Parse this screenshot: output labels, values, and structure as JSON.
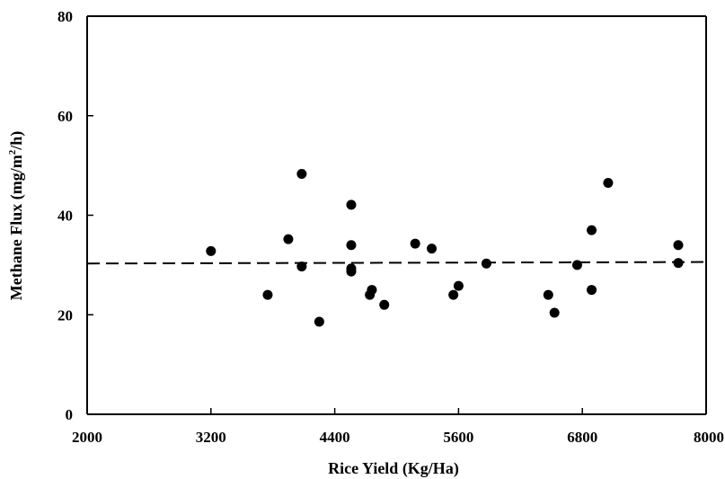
{
  "chart_data": {
    "type": "scatter",
    "title": "",
    "xlabel": "Rice Yield (Kg/Ha)",
    "ylabel_main": "Methane Flux (mg/m",
    "ylabel_sup": "2",
    "ylabel_end": "/h)",
    "xlim": [
      2000,
      8000
    ],
    "ylim": [
      0,
      80
    ],
    "xticks": [
      2000,
      3200,
      4400,
      5600,
      6800,
      8000
    ],
    "yticks": [
      0,
      20,
      40,
      60,
      80
    ],
    "xtick_labels": [
      "2000",
      "3200",
      "4400",
      "5600",
      "6800",
      "8000"
    ],
    "ytick_labels": [
      "0",
      "20",
      "40",
      "60",
      "80"
    ],
    "grid": false,
    "reference_line": {
      "style": "dashed",
      "y_start": 30.3,
      "y_end": 30.6
    },
    "series": [
      {
        "points": [
          {
            "x": 3200,
            "y": 32.8
          },
          {
            "x": 3750,
            "y": 24.0
          },
          {
            "x": 3950,
            "y": 35.2
          },
          {
            "x": 4080,
            "y": 48.3
          },
          {
            "x": 4080,
            "y": 29.7
          },
          {
            "x": 4250,
            "y": 18.6
          },
          {
            "x": 4560,
            "y": 42.1
          },
          {
            "x": 4560,
            "y": 34.0
          },
          {
            "x": 4560,
            "y": 29.3
          },
          {
            "x": 4560,
            "y": 28.7
          },
          {
            "x": 4740,
            "y": 24.0
          },
          {
            "x": 4760,
            "y": 25.0
          },
          {
            "x": 4880,
            "y": 22.0
          },
          {
            "x": 5180,
            "y": 34.3
          },
          {
            "x": 5340,
            "y": 33.3
          },
          {
            "x": 5550,
            "y": 24.0
          },
          {
            "x": 5600,
            "y": 25.8
          },
          {
            "x": 5870,
            "y": 30.3
          },
          {
            "x": 6470,
            "y": 24.0
          },
          {
            "x": 6530,
            "y": 20.4
          },
          {
            "x": 6750,
            "y": 30.0
          },
          {
            "x": 6890,
            "y": 37.0
          },
          {
            "x": 6890,
            "y": 25.0
          },
          {
            "x": 7050,
            "y": 46.5
          },
          {
            "x": 7730,
            "y": 34.0
          },
          {
            "x": 7730,
            "y": 30.4
          }
        ]
      }
    ]
  }
}
